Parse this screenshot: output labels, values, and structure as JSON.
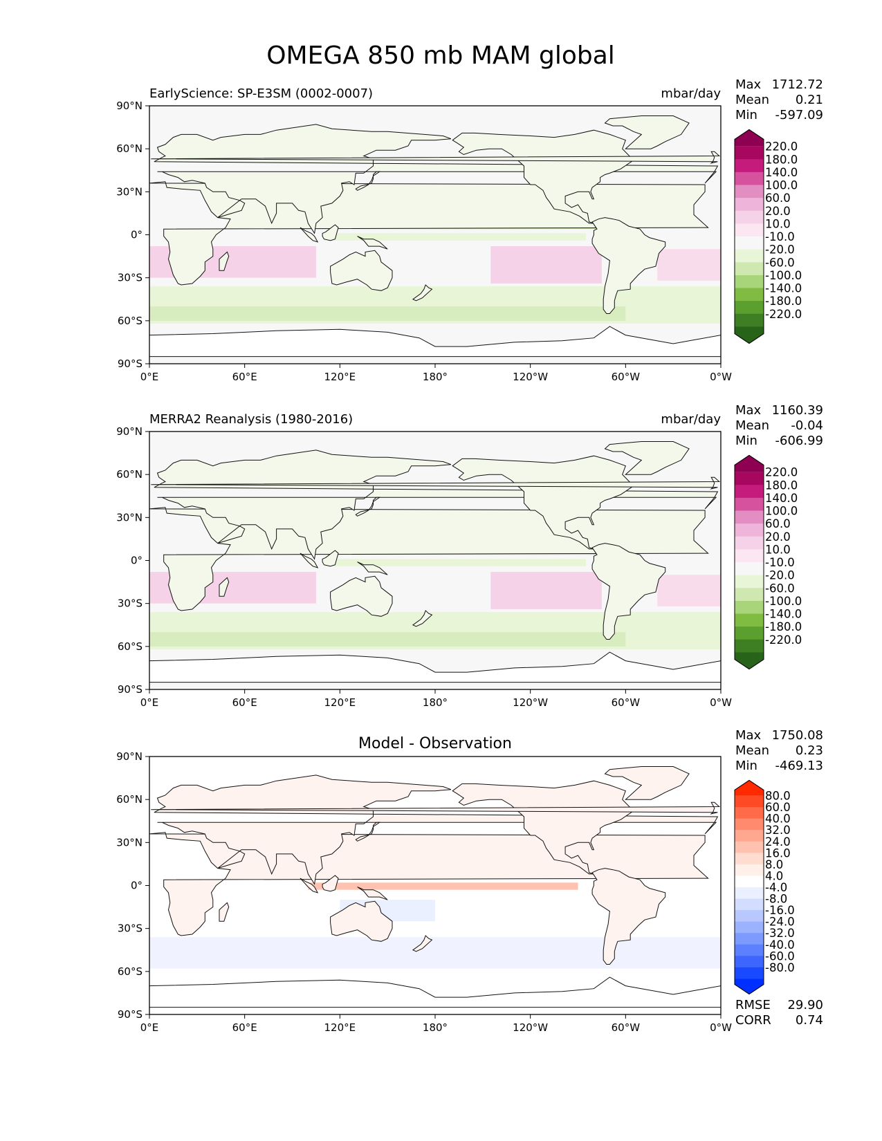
{
  "figure": {
    "title": "OMEGA 850 mb MAM global"
  },
  "chart_data": [
    {
      "type": "heatmap",
      "left_title": "EarlyScience: SP-E3SM (0002-0007)",
      "center_title": "",
      "units": "mbar/day",
      "stats": [
        {
          "label": "Max",
          "value": "1712.72"
        },
        {
          "label": "Mean",
          "value": "0.21"
        },
        {
          "label": "Min",
          "value": "-597.09"
        }
      ],
      "extra_stats": [],
      "colorbar": {
        "labels": [
          "220.0",
          "180.0",
          "140.0",
          "100.0",
          "60.0",
          "20.0",
          "10.0",
          "-10.0",
          "-20.0",
          "-60.0",
          "-100.0",
          "-140.0",
          "-180.0",
          "-220.0"
        ],
        "colors": [
          "#8e0152",
          "#a8075f",
          "#c51b7d",
          "#d6529f",
          "#e38ec3",
          "#efb4d9",
          "#f6d2e8",
          "#fbe6f1",
          "#f7f7f7",
          "#e9f5d7",
          "#cfe8b0",
          "#a9d57a",
          "#7fbc41",
          "#5b9f2e",
          "#3d7f22",
          "#276419"
        ],
        "colormap": "PiYG"
      },
      "x_ticks": [
        "0°E",
        "60°E",
        "120°E",
        "180°",
        "120°W",
        "60°W",
        "0°W"
      ],
      "y_ticks": [
        "90°N",
        "60°N",
        "30°N",
        "0°",
        "30°S",
        "60°S",
        "90°S"
      ],
      "x_range": [
        0,
        360
      ],
      "y_range": [
        -90,
        90
      ]
    },
    {
      "type": "heatmap",
      "left_title": "MERRA2 Reanalysis (1980-2016)",
      "center_title": "",
      "units": "mbar/day",
      "stats": [
        {
          "label": "Max",
          "value": "1160.39"
        },
        {
          "label": "Mean",
          "value": "-0.04"
        },
        {
          "label": "Min",
          "value": "-606.99"
        }
      ],
      "extra_stats": [],
      "colorbar": {
        "labels": [
          "220.0",
          "180.0",
          "140.0",
          "100.0",
          "60.0",
          "20.0",
          "10.0",
          "-10.0",
          "-20.0",
          "-60.0",
          "-100.0",
          "-140.0",
          "-180.0",
          "-220.0"
        ],
        "colors": [
          "#8e0152",
          "#a8075f",
          "#c51b7d",
          "#d6529f",
          "#e38ec3",
          "#efb4d9",
          "#f6d2e8",
          "#fbe6f1",
          "#f7f7f7",
          "#e9f5d7",
          "#cfe8b0",
          "#a9d57a",
          "#7fbc41",
          "#5b9f2e",
          "#3d7f22",
          "#276419"
        ],
        "colormap": "PiYG"
      },
      "x_ticks": [
        "0°E",
        "60°E",
        "120°E",
        "180°",
        "120°W",
        "60°W",
        "0°W"
      ],
      "y_ticks": [
        "90°N",
        "60°N",
        "30°N",
        "0°",
        "30°S",
        "60°S",
        "90°S"
      ],
      "x_range": [
        0,
        360
      ],
      "y_range": [
        -90,
        90
      ]
    },
    {
      "type": "heatmap",
      "left_title": "",
      "center_title": "Model - Observation",
      "units": "",
      "stats": [
        {
          "label": "Max",
          "value": "1750.08"
        },
        {
          "label": "Mean",
          "value": "0.23"
        },
        {
          "label": "Min",
          "value": "-469.13"
        }
      ],
      "extra_stats": [
        {
          "label": "RMSE",
          "value": "29.90"
        },
        {
          "label": "CORR",
          "value": "0.74"
        }
      ],
      "colorbar": {
        "labels": [
          "80.0",
          "60.0",
          "40.0",
          "32.0",
          "24.0",
          "16.0",
          "8.0",
          "4.0",
          "-4.0",
          "-8.0",
          "-16.0",
          "-24.0",
          "-32.0",
          "-40.0",
          "-60.0",
          "-80.0"
        ],
        "colors": [
          "#ff2a00",
          "#ff4a26",
          "#ff6a48",
          "#ff8a6e",
          "#ffa78f",
          "#ffc2b0",
          "#ffdcd0",
          "#fff0ea",
          "#ffffff",
          "#eaf0ff",
          "#d3ddff",
          "#b8c8ff",
          "#9bb2ff",
          "#7d9aff",
          "#5d80ff",
          "#3d66ff",
          "#1a4aff",
          "#0030ff"
        ],
        "colormap": "bwr"
      },
      "x_ticks": [
        "0°E",
        "60°E",
        "120°E",
        "180°",
        "120°W",
        "60°W",
        "0°W"
      ],
      "y_ticks": [
        "90°N",
        "60°N",
        "30°N",
        "0°",
        "30°S",
        "60°S",
        "90°S"
      ],
      "x_range": [
        0,
        360
      ],
      "y_range": [
        -90,
        90
      ]
    }
  ]
}
